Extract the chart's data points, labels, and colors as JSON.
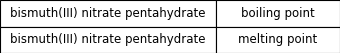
{
  "rows": [
    [
      "bismuth(III) nitrate pentahydrate",
      "boiling point"
    ],
    [
      "bismuth(III) nitrate pentahydrate",
      "melting point"
    ]
  ],
  "cell_bg_color": "#ffffff",
  "outer_bg_color": "#c8c8c8",
  "border_color": "#000000",
  "text_color": "#000000",
  "font_size": 8.5,
  "fig_width": 3.4,
  "fig_height": 0.53,
  "col_split": 0.635
}
